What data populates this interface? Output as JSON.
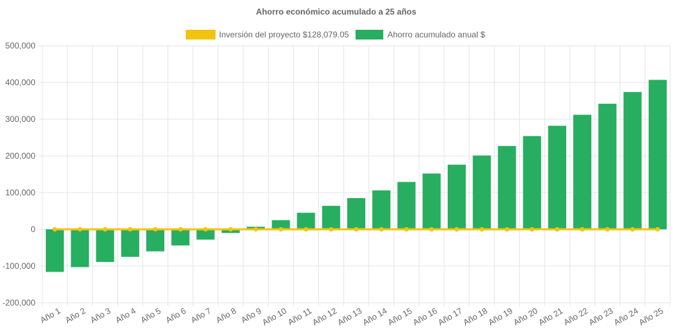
{
  "chart_data": {
    "type": "bar",
    "title": "Ahorro económico acumulado a 25 años",
    "categories": [
      "Año 1",
      "Año 2",
      "Año 3",
      "Año 4",
      "Año 5",
      "Año 6",
      "Año 7",
      "Año 8",
      "Año 9",
      "Año 10",
      "Año 11",
      "Año 12",
      "Año 13",
      "Año 14",
      "Año 15",
      "Año 16",
      "Año 17",
      "Año 18",
      "Año 19",
      "Año 20",
      "Año 21",
      "Año 22",
      "Año 23",
      "Año 24",
      "Año 25"
    ],
    "series": [
      {
        "name": "Inversión del proyecto $128,079.05",
        "type": "line",
        "color": "#f1c40f",
        "values": [
          0,
          0,
          0,
          0,
          0,
          0,
          0,
          0,
          0,
          0,
          0,
          0,
          0,
          0,
          0,
          0,
          0,
          0,
          0,
          0,
          0,
          0,
          0,
          0,
          0
        ]
      },
      {
        "name": "Ahorro acumulado anual $",
        "type": "bar",
        "color": "#27ae60",
        "values": [
          -116000,
          -103000,
          -89000,
          -75000,
          -60000,
          -44000,
          -28000,
          -10000,
          7000,
          25000,
          45000,
          64000,
          85000,
          106000,
          129000,
          152000,
          176000,
          201000,
          227000,
          254000,
          282000,
          312000,
          342000,
          374000,
          407000
        ]
      }
    ],
    "ylim": [
      -200000,
      500000
    ],
    "yticks": [
      "500,000",
      "400,000",
      "300,000",
      "200,000",
      "100,000",
      "0",
      "-100,000",
      "-200,000"
    ],
    "ytick_values": [
      500000,
      400000,
      300000,
      200000,
      100000,
      0,
      -100000,
      -200000
    ],
    "legend_position": "top",
    "grid": true
  }
}
